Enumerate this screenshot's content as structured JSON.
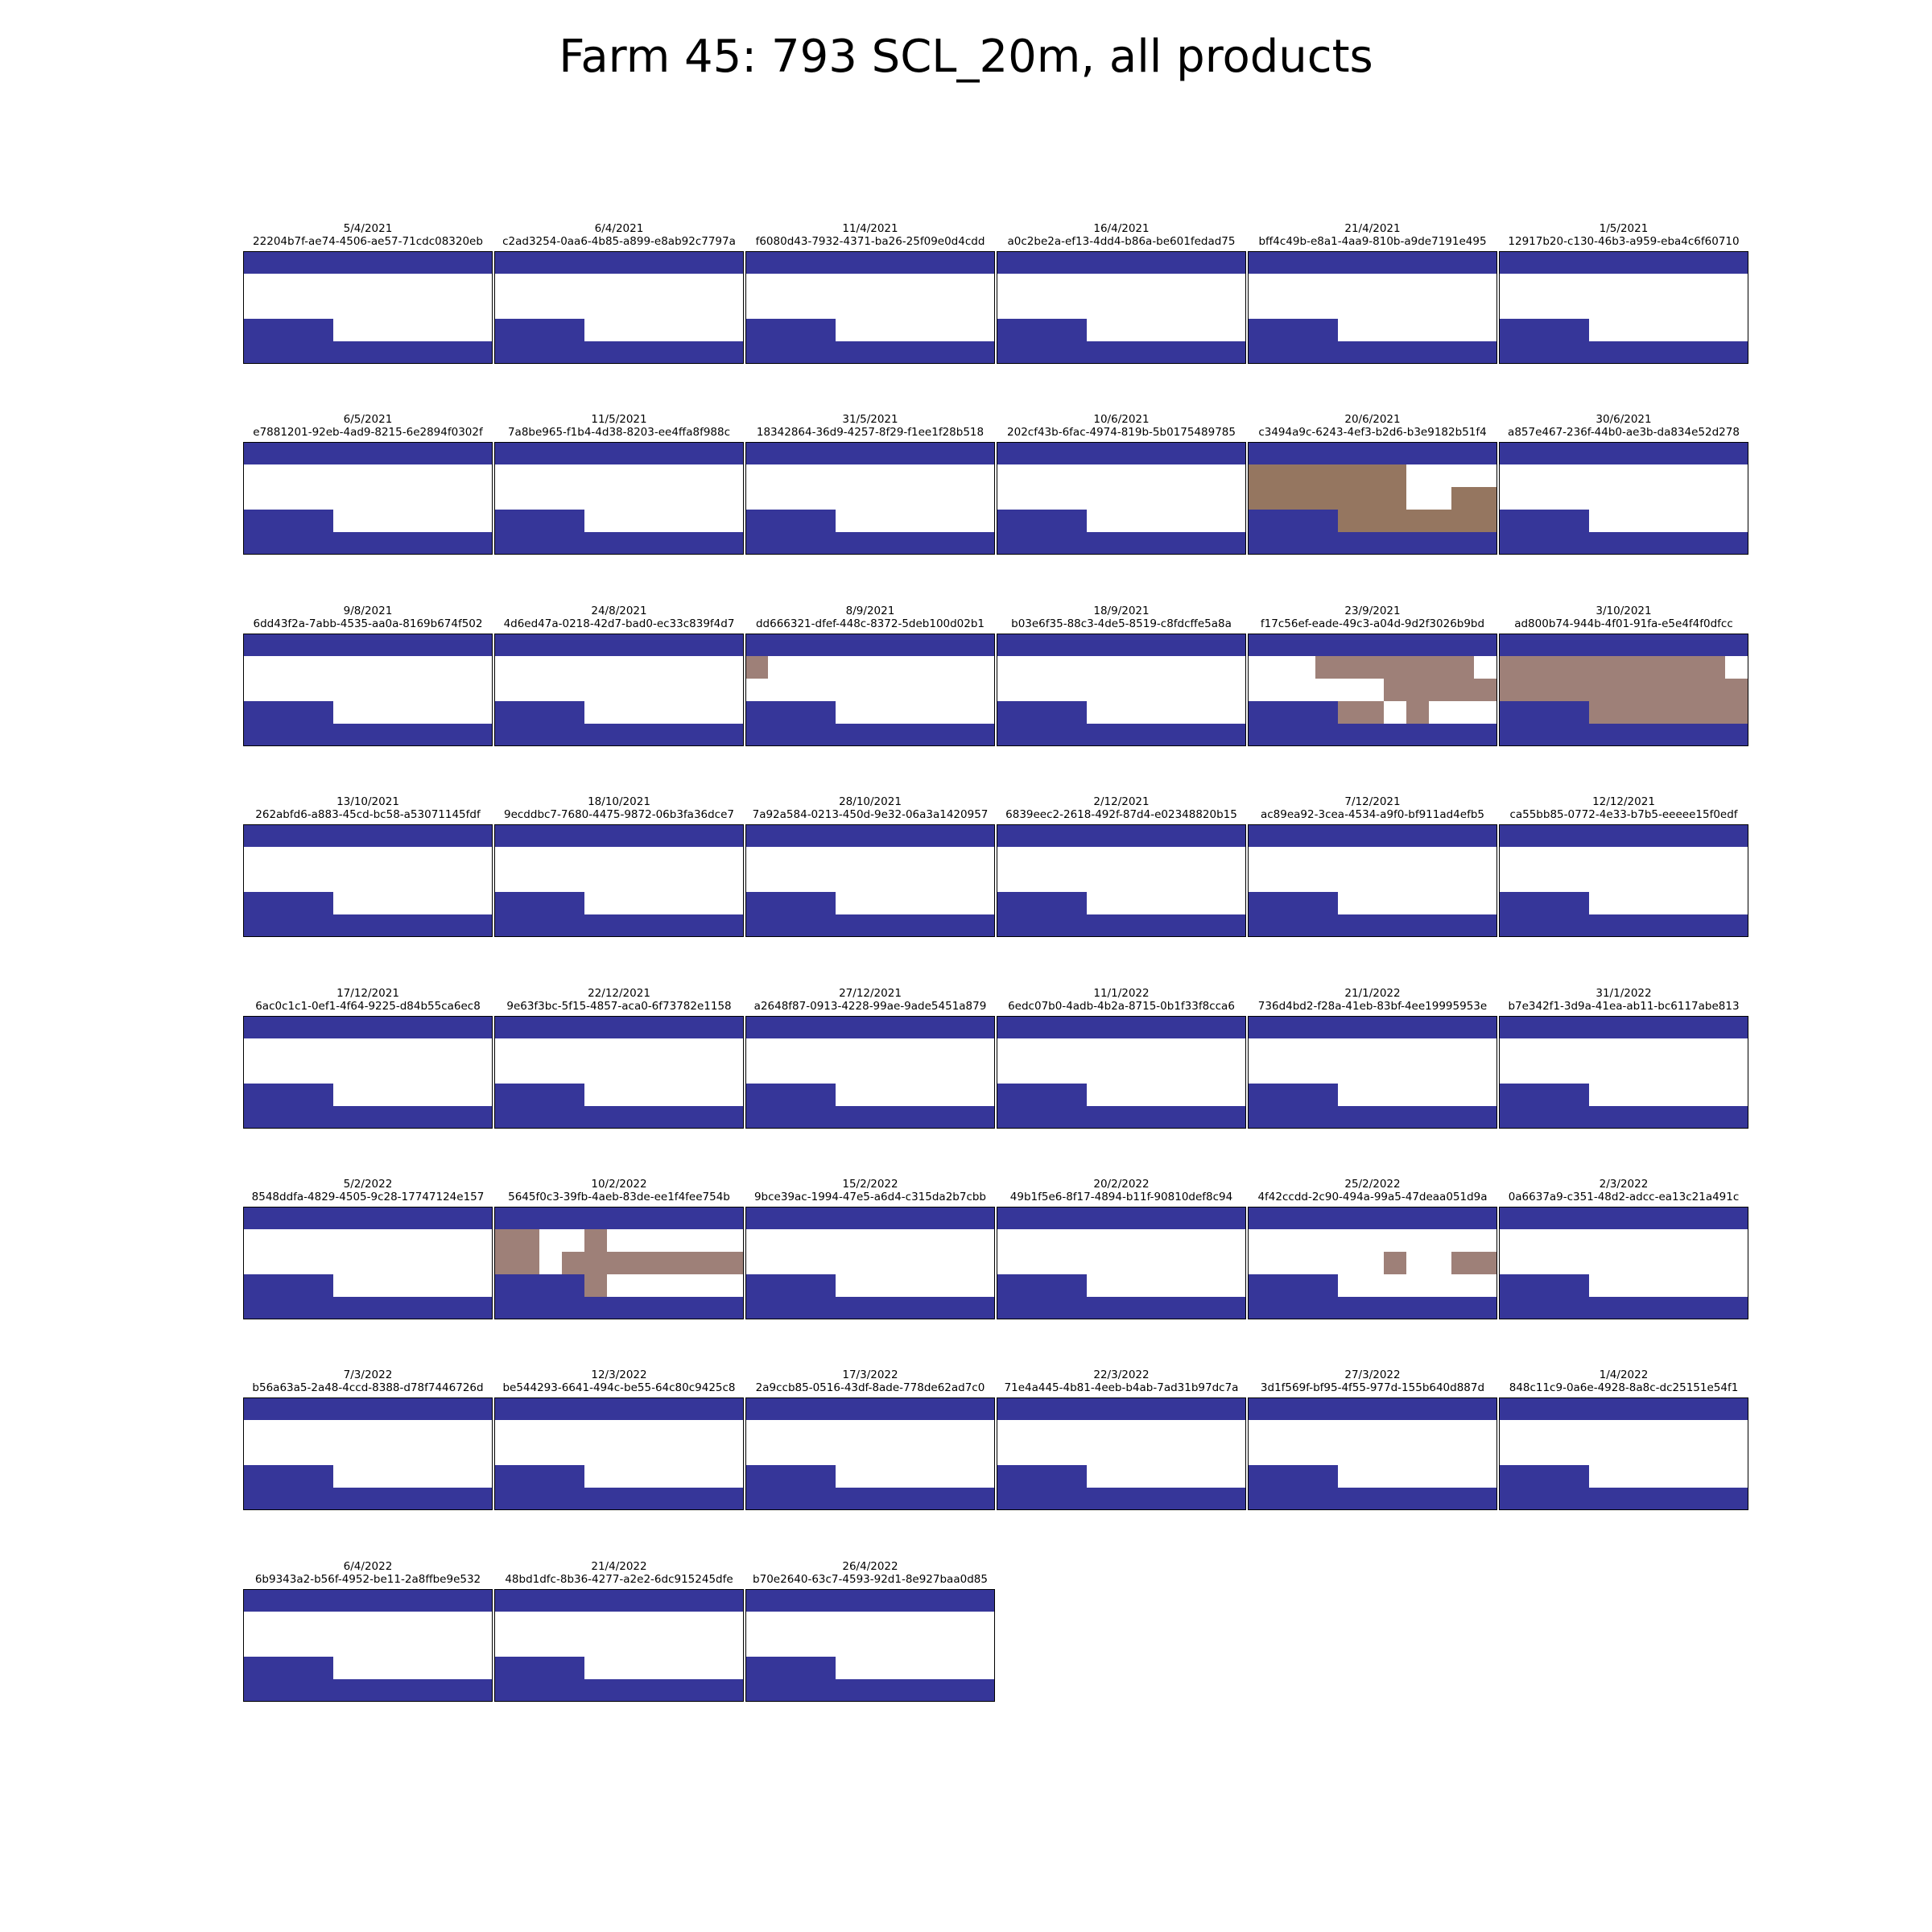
{
  "title": "Farm 45: 793 SCL_20m, all products",
  "chart_data": {
    "type": "heatmap",
    "title": "Farm 45: 793 SCL_20m, all products",
    "grid": {
      "rows": 5,
      "cols": 11
    },
    "legend": "none",
    "class_colors": {
      "0": "#363699",
      "4": "#ffffff",
      "8": "#957660",
      "9": "#9e8078"
    },
    "base_mask": [
      [
        0,
        0,
        0,
        0,
        0,
        0,
        0,
        0,
        0,
        0,
        0
      ],
      [
        4,
        4,
        4,
        4,
        4,
        4,
        4,
        4,
        4,
        4,
        4
      ],
      [
        4,
        4,
        4,
        4,
        4,
        4,
        4,
        4,
        4,
        4,
        4
      ],
      [
        0,
        0,
        0,
        0,
        4,
        4,
        4,
        4,
        4,
        4,
        4
      ],
      [
        0,
        0,
        0,
        0,
        0,
        0,
        0,
        0,
        0,
        0,
        0
      ]
    ],
    "panels": [
      {
        "date": "5/4/2021",
        "id": "22204b7f-ae74-4506-ae57-71cdc08320eb",
        "overrides": []
      },
      {
        "date": "6/4/2021",
        "id": "c2ad3254-0aa6-4b85-a899-e8ab92c7797a",
        "overrides": []
      },
      {
        "date": "11/4/2021",
        "id": "f6080d43-7932-4371-ba26-25f09e0d4cdd",
        "overrides": []
      },
      {
        "date": "16/4/2021",
        "id": "a0c2be2a-ef13-4dd4-b86a-be601fedad75",
        "overrides": []
      },
      {
        "date": "21/4/2021",
        "id": "bff4c49b-e8a1-4aa9-810b-a9de7191e495",
        "overrides": []
      },
      {
        "date": "1/5/2021",
        "id": "12917b20-c130-46b3-a959-eba4c6f60710",
        "overrides": []
      },
      {
        "date": "6/5/2021",
        "id": "e7881201-92eb-4ad9-8215-6e2894f0302f",
        "overrides": []
      },
      {
        "date": "11/5/2021",
        "id": "7a8be965-f1b4-4d38-8203-ee4ffa8f988c",
        "overrides": []
      },
      {
        "date": "31/5/2021",
        "id": "18342864-36d9-4257-8f29-f1ee1f28b518",
        "overrides": []
      },
      {
        "date": "10/6/2021",
        "id": "202cf43b-6fac-4974-819b-5b0175489785",
        "overrides": []
      },
      {
        "date": "20/6/2021",
        "id": "c3494a9c-6243-4ef3-b2d6-b3e9182b51f4",
        "overrides": [
          [
            1,
            0,
            8
          ],
          [
            1,
            1,
            8
          ],
          [
            1,
            2,
            8
          ],
          [
            1,
            3,
            8
          ],
          [
            1,
            4,
            8
          ],
          [
            1,
            5,
            8
          ],
          [
            1,
            6,
            8
          ],
          [
            2,
            0,
            8
          ],
          [
            2,
            1,
            8
          ],
          [
            2,
            2,
            8
          ],
          [
            2,
            3,
            8
          ],
          [
            2,
            4,
            8
          ],
          [
            2,
            5,
            8
          ],
          [
            2,
            6,
            8
          ],
          [
            2,
            9,
            8
          ],
          [
            2,
            10,
            8
          ],
          [
            3,
            4,
            8
          ],
          [
            3,
            5,
            8
          ],
          [
            3,
            6,
            8
          ],
          [
            3,
            7,
            8
          ],
          [
            3,
            8,
            8
          ],
          [
            3,
            9,
            8
          ],
          [
            3,
            10,
            8
          ]
        ]
      },
      {
        "date": "30/6/2021",
        "id": "a857e467-236f-44b0-ae3b-da834e52d278",
        "overrides": []
      },
      {
        "date": "9/8/2021",
        "id": "6dd43f2a-7abb-4535-aa0a-8169b674f502",
        "overrides": []
      },
      {
        "date": "24/8/2021",
        "id": "4d6ed47a-0218-42d7-bad0-ec33c839f4d7",
        "overrides": []
      },
      {
        "date": "8/9/2021",
        "id": "dd666321-dfef-448c-8372-5deb100d02b1",
        "overrides": [
          [
            1,
            0,
            9
          ]
        ]
      },
      {
        "date": "18/9/2021",
        "id": "b03e6f35-88c3-4de5-8519-c8fdcffe5a8a",
        "overrides": []
      },
      {
        "date": "23/9/2021",
        "id": "f17c56ef-eade-49c3-a04d-9d2f3026b9bd",
        "overrides": [
          [
            1,
            3,
            9
          ],
          [
            1,
            4,
            9
          ],
          [
            1,
            5,
            9
          ],
          [
            1,
            6,
            9
          ],
          [
            1,
            7,
            9
          ],
          [
            1,
            8,
            9
          ],
          [
            1,
            9,
            9
          ],
          [
            2,
            6,
            9
          ],
          [
            2,
            7,
            9
          ],
          [
            2,
            8,
            9
          ],
          [
            2,
            9,
            9
          ],
          [
            2,
            10,
            9
          ],
          [
            3,
            4,
            9
          ],
          [
            3,
            5,
            9
          ],
          [
            3,
            7,
            9
          ]
        ]
      },
      {
        "date": "3/10/2021",
        "id": "ad800b74-944b-4f01-91fa-e5e4f4f0dfcc",
        "overrides": [
          [
            1,
            0,
            9
          ],
          [
            1,
            1,
            9
          ],
          [
            1,
            2,
            9
          ],
          [
            1,
            3,
            9
          ],
          [
            1,
            4,
            9
          ],
          [
            1,
            5,
            9
          ],
          [
            1,
            6,
            9
          ],
          [
            1,
            7,
            9
          ],
          [
            1,
            8,
            9
          ],
          [
            1,
            9,
            9
          ],
          [
            2,
            0,
            9
          ],
          [
            2,
            1,
            9
          ],
          [
            2,
            2,
            9
          ],
          [
            2,
            3,
            9
          ],
          [
            2,
            4,
            9
          ],
          [
            2,
            5,
            9
          ],
          [
            2,
            6,
            9
          ],
          [
            2,
            7,
            9
          ],
          [
            2,
            8,
            9
          ],
          [
            2,
            9,
            9
          ],
          [
            2,
            10,
            9
          ],
          [
            3,
            4,
            9
          ],
          [
            3,
            5,
            9
          ],
          [
            3,
            6,
            9
          ],
          [
            3,
            7,
            9
          ],
          [
            3,
            8,
            9
          ],
          [
            3,
            9,
            9
          ],
          [
            3,
            10,
            9
          ]
        ]
      },
      {
        "date": "13/10/2021",
        "id": "262abfd6-a883-45cd-bc58-a53071145fdf",
        "overrides": []
      },
      {
        "date": "18/10/2021",
        "id": "9ecddbc7-7680-4475-9872-06b3fa36dce7",
        "overrides": []
      },
      {
        "date": "28/10/2021",
        "id": "7a92a584-0213-450d-9e32-06a3a1420957",
        "overrides": []
      },
      {
        "date": "2/12/2021",
        "id": "6839eec2-2618-492f-87d4-e02348820b15",
        "overrides": []
      },
      {
        "date": "7/12/2021",
        "id": "ac89ea92-3cea-4534-a9f0-bf911ad4efb5",
        "overrides": []
      },
      {
        "date": "12/12/2021",
        "id": "ca55bb85-0772-4e33-b7b5-eeeee15f0edf",
        "overrides": []
      },
      {
        "date": "17/12/2021",
        "id": "6ac0c1c1-0ef1-4f64-9225-d84b55ca6ec8",
        "overrides": []
      },
      {
        "date": "22/12/2021",
        "id": "9e63f3bc-5f15-4857-aca0-6f73782e1158",
        "overrides": []
      },
      {
        "date": "27/12/2021",
        "id": "a2648f87-0913-4228-99ae-9ade5451a879",
        "overrides": []
      },
      {
        "date": "11/1/2022",
        "id": "6edc07b0-4adb-4b2a-8715-0b1f33f8cca6",
        "overrides": []
      },
      {
        "date": "21/1/2022",
        "id": "736d4bd2-f28a-41eb-83bf-4ee19995953e",
        "overrides": []
      },
      {
        "date": "31/1/2022",
        "id": "b7e342f1-3d9a-41ea-ab11-bc6117abe813",
        "overrides": []
      },
      {
        "date": "5/2/2022",
        "id": "8548ddfa-4829-4505-9c28-17747124e157",
        "overrides": []
      },
      {
        "date": "10/2/2022",
        "id": "5645f0c3-39fb-4aeb-83de-ee1f4fee754b",
        "overrides": [
          [
            1,
            0,
            9
          ],
          [
            1,
            1,
            9
          ],
          [
            1,
            4,
            9
          ],
          [
            2,
            0,
            9
          ],
          [
            2,
            1,
            9
          ],
          [
            2,
            3,
            9
          ],
          [
            2,
            4,
            9
          ],
          [
            2,
            5,
            9
          ],
          [
            2,
            6,
            9
          ],
          [
            2,
            7,
            9
          ],
          [
            2,
            8,
            9
          ],
          [
            2,
            9,
            9
          ],
          [
            2,
            10,
            9
          ],
          [
            3,
            4,
            9
          ]
        ]
      },
      {
        "date": "15/2/2022",
        "id": "9bce39ac-1994-47e5-a6d4-c315da2b7cbb",
        "overrides": []
      },
      {
        "date": "20/2/2022",
        "id": "49b1f5e6-8f17-4894-b11f-90810def8c94",
        "overrides": []
      },
      {
        "date": "25/2/2022",
        "id": "4f42ccdd-2c90-494a-99a5-47deaa051d9a",
        "overrides": [
          [
            2,
            6,
            9
          ],
          [
            2,
            9,
            9
          ],
          [
            2,
            10,
            9
          ]
        ]
      },
      {
        "date": "2/3/2022",
        "id": "0a6637a9-c351-48d2-adcc-ea13c21a491c",
        "overrides": []
      },
      {
        "date": "7/3/2022",
        "id": "b56a63a5-2a48-4ccd-8388-d78f7446726d",
        "overrides": []
      },
      {
        "date": "12/3/2022",
        "id": "be544293-6641-494c-be55-64c80c9425c8",
        "overrides": []
      },
      {
        "date": "17/3/2022",
        "id": "2a9ccb85-0516-43df-8ade-778de62ad7c0",
        "overrides": []
      },
      {
        "date": "22/3/2022",
        "id": "71e4a445-4b81-4eeb-b4ab-7ad31b97dc7a",
        "overrides": []
      },
      {
        "date": "27/3/2022",
        "id": "3d1f569f-bf95-4f55-977d-155b640d887d",
        "overrides": []
      },
      {
        "date": "1/4/2022",
        "id": "848c11c9-0a6e-4928-8a8c-dc25151e54f1",
        "overrides": []
      },
      {
        "date": "6/4/2022",
        "id": "6b9343a2-b56f-4952-be11-2a8ffbe9e532",
        "overrides": []
      },
      {
        "date": "21/4/2022",
        "id": "48bd1dfc-8b36-4277-a2e2-6dc915245dfe",
        "overrides": []
      },
      {
        "date": "26/4/2022",
        "id": "b70e2640-63c7-4593-92d1-8e927baa0d85",
        "overrides": []
      }
    ]
  }
}
